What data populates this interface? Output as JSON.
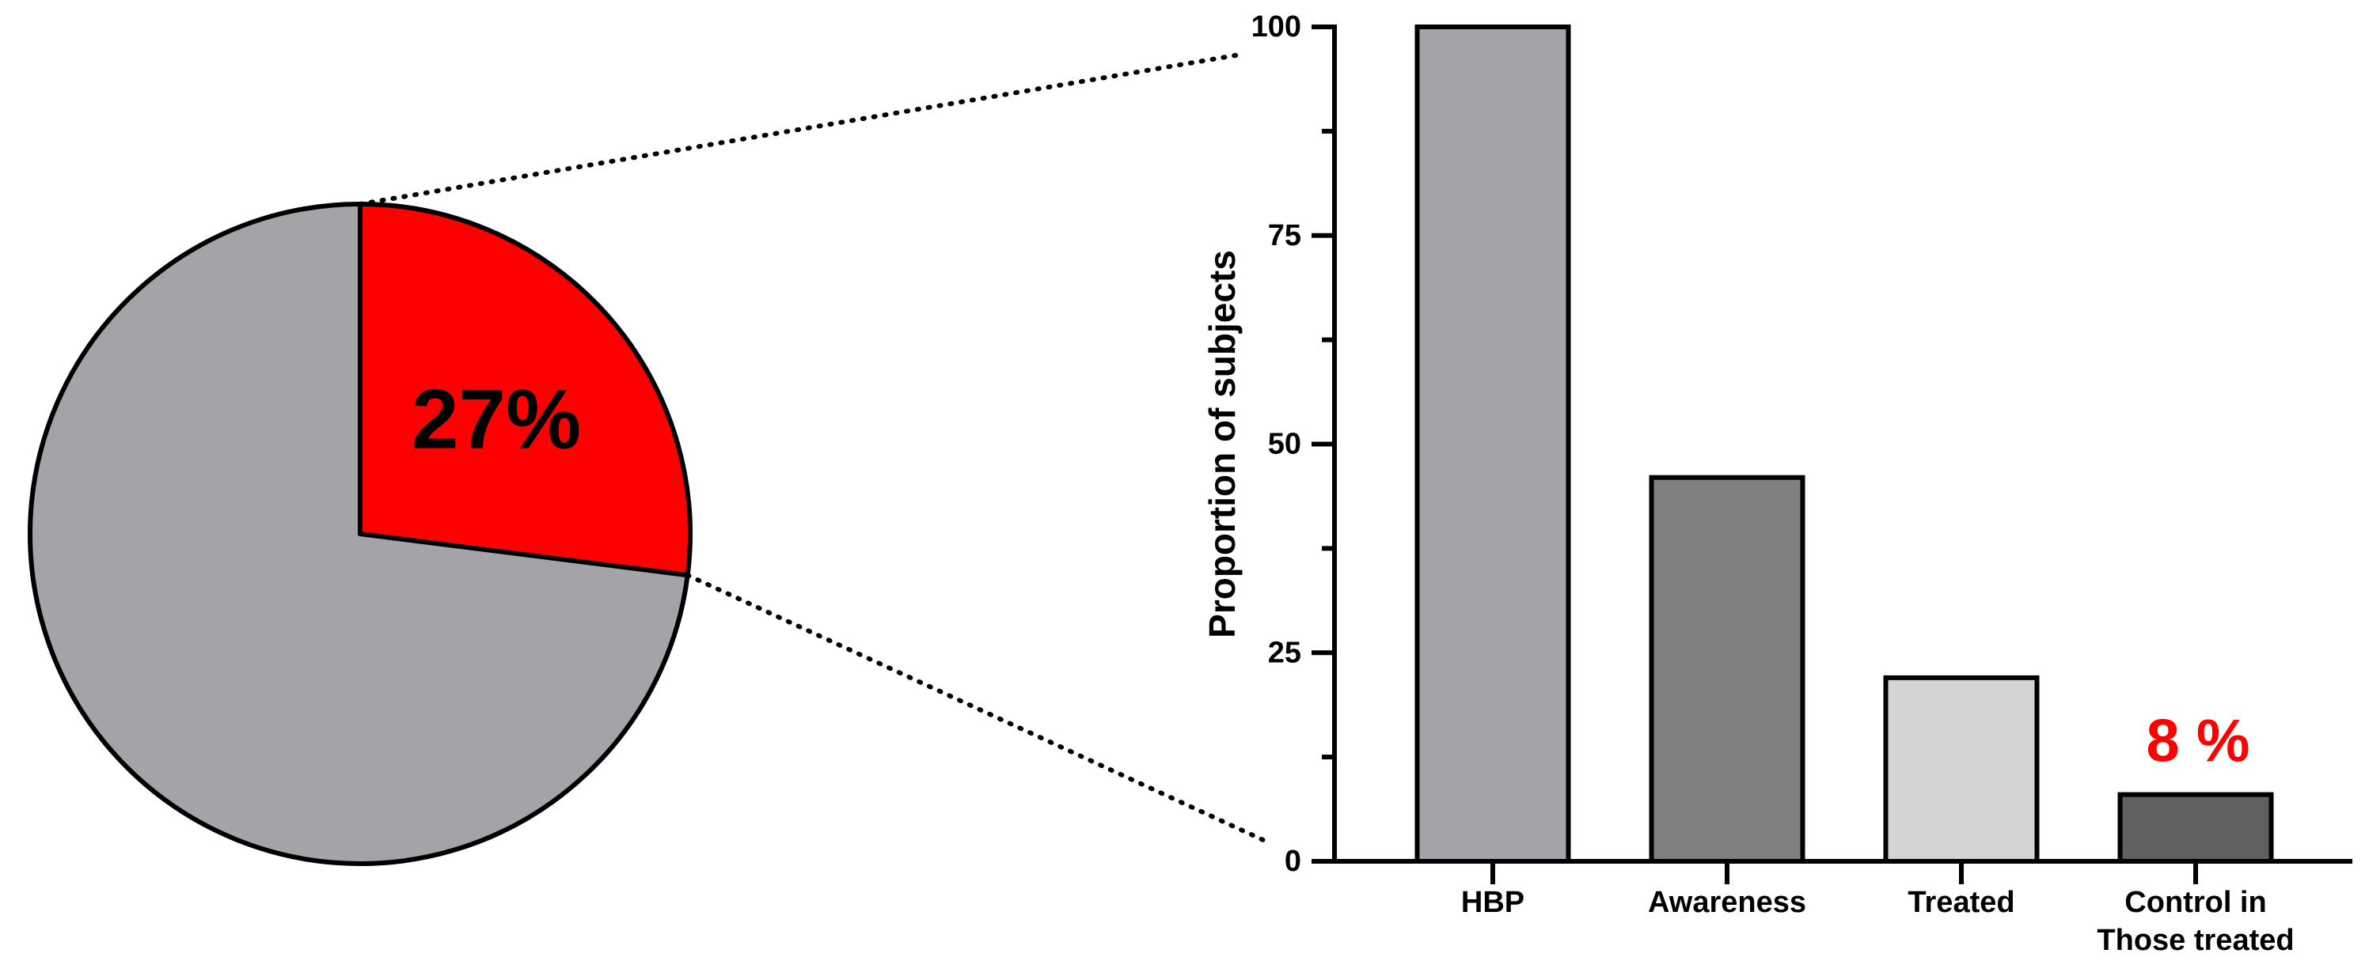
{
  "chart_data": [
    {
      "type": "pie",
      "values": [
        27,
        73
      ],
      "value_labels": [
        "27%",
        null
      ],
      "colors": [
        "#ff0000",
        "#a4a3a8"
      ]
    },
    {
      "type": "bar",
      "y_label": "Proportion of subjects",
      "categories": [
        "HBP",
        "Awareness",
        "Treated",
        "Control in\nThose treated"
      ],
      "values": [
        100,
        46,
        22,
        8
      ],
      "value_labels": [
        null,
        null,
        null,
        "8 %"
      ],
      "colors": [
        "#a4a3a8",
        "#808080",
        "#d4d4d4",
        "#606060"
      ],
      "value_label_color": "#ff0000",
      "ylim": [
        0,
        100
      ],
      "yticks": [
        0,
        25,
        50,
        75,
        100
      ],
      "minor_yticks": [
        12.5,
        37.5,
        62.5,
        87.5
      ]
    }
  ]
}
